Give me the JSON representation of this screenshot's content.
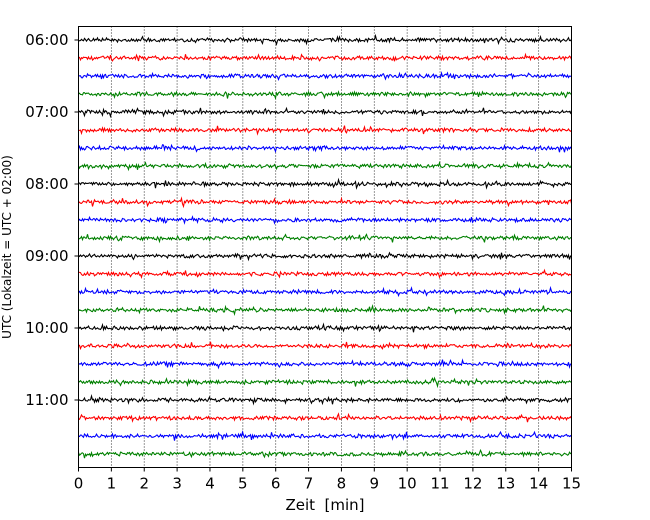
{
  "chart_data": {
    "type": "line",
    "subtype": "seismogram-helicorder",
    "xlabel": "Zeit  [min]",
    "ylabel": "UTC (Lokalzeit = UTC + 02:00)",
    "xlim": [
      0,
      15
    ],
    "x_ticks": [
      0,
      1,
      2,
      3,
      4,
      5,
      6,
      7,
      8,
      9,
      10,
      11,
      12,
      13,
      14,
      15
    ],
    "y_tick_labels": [
      "06:00",
      "07:00",
      "08:00",
      "09:00",
      "10:00",
      "11:00"
    ],
    "start_time": "06:00",
    "end_time": "12:00",
    "trace_interval_minutes": 15,
    "trace_count": 24,
    "trace_colors": [
      "#000000",
      "#ff0000",
      "#0000ff",
      "#008000"
    ],
    "vertical_grid": "dotted",
    "legend": "none"
  }
}
